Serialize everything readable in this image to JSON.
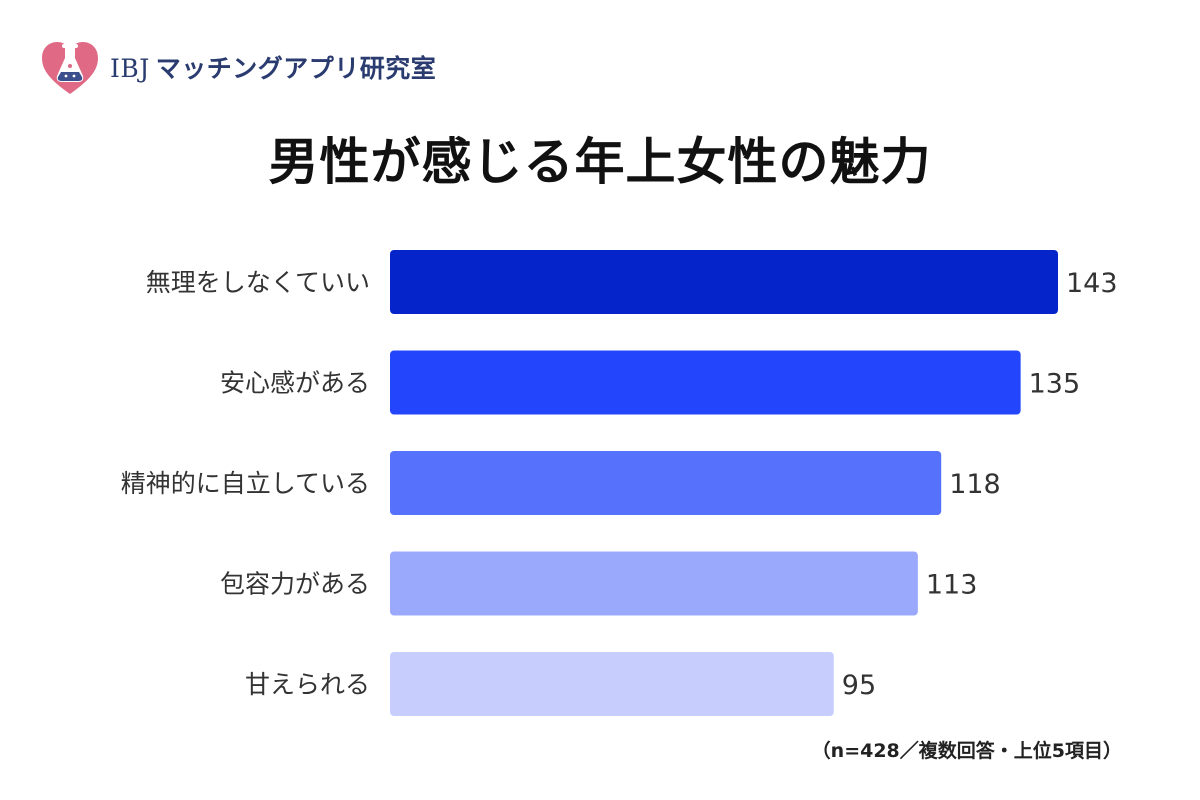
{
  "logo": {
    "brand": "IBJ",
    "name": "マッチングアプリ研究室"
  },
  "chart_data": {
    "type": "bar",
    "orientation": "horizontal",
    "title": "男性が感じる年上女性の魅力",
    "categories": [
      "無理をしなくていい",
      "安心感がある",
      "精神的に自立している",
      "包容力がある",
      "甘えられる"
    ],
    "values": [
      143,
      135,
      118,
      113,
      95
    ],
    "xlim": [
      0,
      143
    ],
    "bar_colors": [
      "#0524c9",
      "#2345fb",
      "#5671fc",
      "#9ba9fd",
      "#c7cdfd"
    ],
    "data_labels": true,
    "grid": false,
    "note": "（n=428／複数回答・上位5項目）"
  }
}
